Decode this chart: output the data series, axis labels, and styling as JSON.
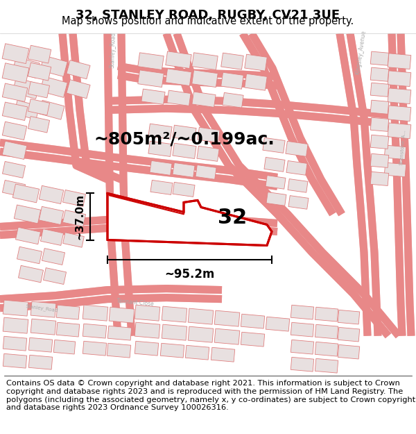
{
  "title": "32, STANLEY ROAD, RUGBY, CV21 3UE",
  "subtitle": "Map shows position and indicative extent of the property.",
  "area_label": "~805m²/~0.199ac.",
  "number_label": "32",
  "dim_width": "~95.2m",
  "dim_height": "~37.0m",
  "footer_text": "Contains OS data © Crown copyright and database right 2021. This information is subject to Crown copyright and database rights 2023 and is reproduced with the permission of HM Land Registry. The polygons (including the associated geometry, namely x, y co-ordinates) are subject to Crown copyright and database rights 2023 Ordnance Survey 100026316.",
  "map_bg": "#ffffff",
  "property_color": "#cc0000",
  "road_color": "#f0b8b8",
  "road_outline": "#e88888",
  "building_fill": "#e8e0e0",
  "building_edge": "#e08080",
  "dim_color": "#000000",
  "label_color": "#aaaaaa",
  "title_fontsize": 13,
  "subtitle_fontsize": 10.5,
  "area_fontsize": 18,
  "number_fontsize": 22,
  "footer_fontsize": 8.2,
  "prop_lw": 2.2,
  "road_lw": 1.0,
  "building_lw": 0.6
}
